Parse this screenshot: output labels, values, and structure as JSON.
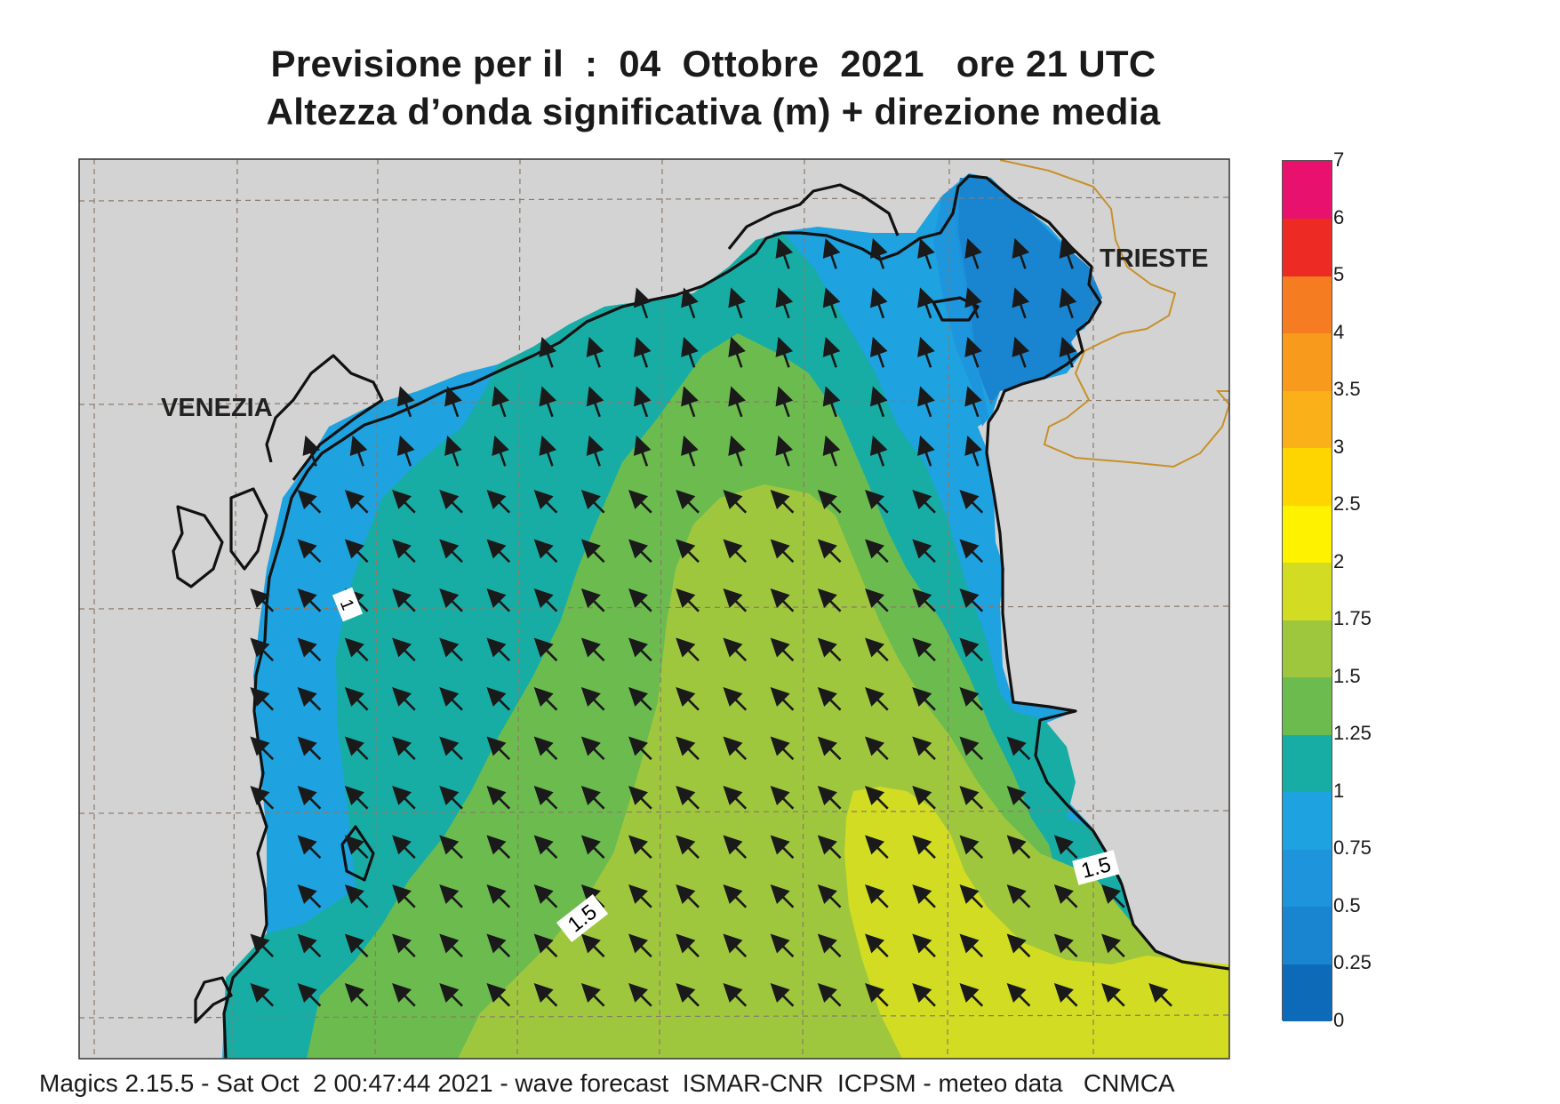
{
  "title": {
    "line1": "Previsione per il  :  04  Ottobre  2021   ore 21 UTC",
    "line2": "Altezza d’onda significativa (m) + direzione media"
  },
  "cities": {
    "venezia": "VENEZIA",
    "trieste": "TRIESTE"
  },
  "contour_labels": {
    "west_coast": "1",
    "south_center": "1.5",
    "east_coast": "1.5"
  },
  "legend": {
    "levels": [
      "0",
      "0.25",
      "0.5",
      "0.75",
      "1",
      "1.25",
      "1.5",
      "1.75",
      "2",
      "2.5",
      "3",
      "3.5",
      "4",
      "5",
      "6",
      "7"
    ],
    "colors": [
      "#0d6ab8",
      "#1985d1",
      "#1d94dc",
      "#1ea2e0",
      "#17ada5",
      "#6cbb4f",
      "#9fc73e",
      "#d2dc22",
      "#fff200",
      "#ffd500",
      "#fab018",
      "#f89a1b",
      "#f57c21",
      "#ee2a24",
      "#e8116d"
    ]
  },
  "colors": {
    "land": "#d3d3d3",
    "coast": "#111111",
    "border": "#c8902a",
    "arrow": "#1a1a1a",
    "grid": "#8a7a6a"
  },
  "wave_direction": "north-west",
  "footer": "Magics 2.15.5 - Sat Oct  2 00:47:44 2021 - wave forecast  ISMAR-CNR  ICPSM - meteo data   CNMCA"
}
